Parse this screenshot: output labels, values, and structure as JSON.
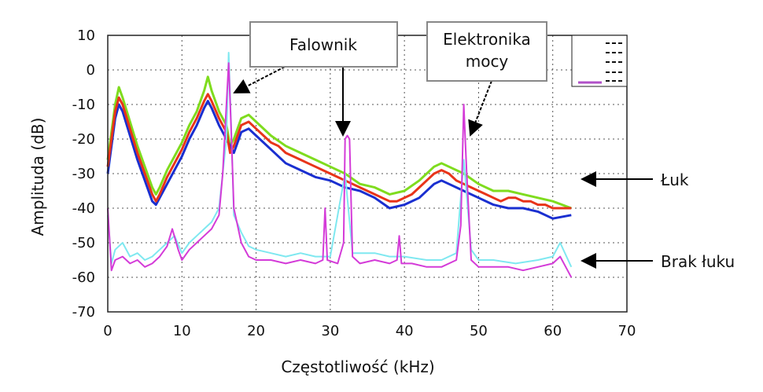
{
  "chart_data": {
    "type": "line",
    "title": "",
    "xlabel": "Częstotliwość (kHz)",
    "ylabel": "Amplituda (dB)",
    "xlim": [
      0,
      70
    ],
    "ylim": [
      -70,
      10
    ],
    "xticks": [
      0,
      10,
      20,
      30,
      40,
      50,
      60,
      70
    ],
    "yticks": [
      10,
      0,
      -10,
      -20,
      -30,
      -40,
      -50,
      -60,
      -70
    ],
    "grid": true,
    "legend_placement": "top-right",
    "annotations": [
      {
        "text": "Falownik",
        "target_x": 16.5,
        "target_y": -6
      },
      {
        "text": "Falownik",
        "target_x": 32,
        "target_y": -19
      },
      {
        "text": "Elektronika mocy",
        "target_x": 48.5,
        "target_y": -19
      },
      {
        "text": "Łuk",
        "target_x": 64,
        "target_y": -31
      },
      {
        "text": "Brak łuku",
        "target_x": 64,
        "target_y": -55
      }
    ],
    "series": [
      {
        "color": "#7fdc1e",
        "points": [
          [
            0,
            -26
          ],
          [
            1,
            -10
          ],
          [
            1.5,
            -5
          ],
          [
            2,
            -8
          ],
          [
            3,
            -15
          ],
          [
            4,
            -22
          ],
          [
            5,
            -28
          ],
          [
            6,
            -34
          ],
          [
            6.5,
            -36
          ],
          [
            7,
            -34
          ],
          [
            8,
            -29
          ],
          [
            9,
            -25
          ],
          [
            10,
            -21
          ],
          [
            11,
            -16
          ],
          [
            12,
            -12
          ],
          [
            13,
            -6
          ],
          [
            13.5,
            -2
          ],
          [
            14,
            -6
          ],
          [
            15,
            -12
          ],
          [
            16,
            -16
          ],
          [
            16.5,
            -22
          ],
          [
            17,
            -20
          ],
          [
            18,
            -14
          ],
          [
            19,
            -13
          ],
          [
            20,
            -15
          ],
          [
            22,
            -19
          ],
          [
            24,
            -22
          ],
          [
            26,
            -24
          ],
          [
            28,
            -26
          ],
          [
            30,
            -28
          ],
          [
            32,
            -30
          ],
          [
            34,
            -33
          ],
          [
            36,
            -34
          ],
          [
            38,
            -36
          ],
          [
            40,
            -35
          ],
          [
            42,
            -32
          ],
          [
            44,
            -28
          ],
          [
            45,
            -27
          ],
          [
            46,
            -28
          ],
          [
            48,
            -30
          ],
          [
            50,
            -33
          ],
          [
            52,
            -35
          ],
          [
            54,
            -35
          ],
          [
            56,
            -36
          ],
          [
            58,
            -37
          ],
          [
            60,
            -38
          ],
          [
            62.5,
            -40
          ]
        ]
      },
      {
        "color": "#1a2fd0",
        "points": [
          [
            0,
            -30
          ],
          [
            1,
            -14
          ],
          [
            1.5,
            -10
          ],
          [
            2,
            -12
          ],
          [
            3,
            -19
          ],
          [
            4,
            -26
          ],
          [
            5,
            -32
          ],
          [
            6,
            -38
          ],
          [
            6.5,
            -39
          ],
          [
            7,
            -37
          ],
          [
            8,
            -33
          ],
          [
            9,
            -29
          ],
          [
            10,
            -25
          ],
          [
            11,
            -20
          ],
          [
            12,
            -16
          ],
          [
            13,
            -11
          ],
          [
            13.5,
            -9
          ],
          [
            14,
            -11
          ],
          [
            15,
            -16
          ],
          [
            16,
            -20
          ],
          [
            17,
            -24
          ],
          [
            18,
            -18
          ],
          [
            19,
            -17
          ],
          [
            20,
            -19
          ],
          [
            22,
            -23
          ],
          [
            24,
            -27
          ],
          [
            26,
            -29
          ],
          [
            28,
            -31
          ],
          [
            30,
            -32
          ],
          [
            32,
            -34
          ],
          [
            34,
            -35
          ],
          [
            36,
            -37
          ],
          [
            38,
            -40
          ],
          [
            40,
            -39
          ],
          [
            42,
            -37
          ],
          [
            44,
            -33
          ],
          [
            45,
            -32
          ],
          [
            46,
            -33
          ],
          [
            48,
            -35
          ],
          [
            50,
            -37
          ],
          [
            52,
            -39
          ],
          [
            54,
            -40
          ],
          [
            56,
            -40
          ],
          [
            58,
            -41
          ],
          [
            60,
            -43
          ],
          [
            62.5,
            -42
          ]
        ]
      },
      {
        "color": "#e8341a",
        "points": [
          [
            0,
            -28
          ],
          [
            1,
            -12
          ],
          [
            1.5,
            -8
          ],
          [
            2,
            -10
          ],
          [
            3,
            -17
          ],
          [
            4,
            -24
          ],
          [
            5,
            -30
          ],
          [
            6,
            -36
          ],
          [
            6.5,
            -38
          ],
          [
            7,
            -36
          ],
          [
            8,
            -31
          ],
          [
            9,
            -27
          ],
          [
            10,
            -23
          ],
          [
            11,
            -18
          ],
          [
            12,
            -14
          ],
          [
            13,
            -9
          ],
          [
            13.5,
            -7
          ],
          [
            14,
            -9
          ],
          [
            15,
            -14
          ],
          [
            16,
            -18
          ],
          [
            16.5,
            -24
          ],
          [
            17,
            -22
          ],
          [
            18,
            -16
          ],
          [
            19,
            -15
          ],
          [
            20,
            -17
          ],
          [
            21,
            -19
          ],
          [
            22,
            -21
          ],
          [
            23,
            -22
          ],
          [
            24,
            -24
          ],
          [
            25,
            -25
          ],
          [
            26,
            -26
          ],
          [
            27,
            -27
          ],
          [
            28,
            -28
          ],
          [
            29,
            -29
          ],
          [
            30,
            -30
          ],
          [
            31,
            -31
          ],
          [
            32,
            -32
          ],
          [
            33,
            -33
          ],
          [
            34,
            -34
          ],
          [
            35,
            -35
          ],
          [
            36,
            -36
          ],
          [
            37,
            -37
          ],
          [
            38,
            -38
          ],
          [
            39,
            -38
          ],
          [
            40,
            -37
          ],
          [
            41,
            -36
          ],
          [
            42,
            -34
          ],
          [
            43,
            -32
          ],
          [
            44,
            -30
          ],
          [
            45,
            -29
          ],
          [
            46,
            -30
          ],
          [
            47,
            -32
          ],
          [
            48,
            -33
          ],
          [
            49,
            -34
          ],
          [
            50,
            -35
          ],
          [
            51,
            -36
          ],
          [
            52,
            -37
          ],
          [
            53,
            -38
          ],
          [
            54,
            -37
          ],
          [
            55,
            -37
          ],
          [
            56,
            -38
          ],
          [
            57,
            -38
          ],
          [
            58,
            -39
          ],
          [
            59,
            -39
          ],
          [
            60,
            -40
          ],
          [
            61,
            -40
          ],
          [
            62.5,
            -40
          ]
        ]
      },
      {
        "color": "#7fe8f0",
        "points": [
          [
            0,
            -42
          ],
          [
            0.5,
            -56
          ],
          [
            1,
            -52
          ],
          [
            2,
            -50
          ],
          [
            3,
            -54
          ],
          [
            4,
            -53
          ],
          [
            5,
            -55
          ],
          [
            6,
            -54
          ],
          [
            7,
            -52
          ],
          [
            8,
            -50
          ],
          [
            9,
            -48
          ],
          [
            10,
            -53
          ],
          [
            11,
            -50
          ],
          [
            12,
            -48
          ],
          [
            13,
            -46
          ],
          [
            14,
            -44
          ],
          [
            15,
            -40
          ],
          [
            16,
            -20
          ],
          [
            16.3,
            5
          ],
          [
            16.7,
            -20
          ],
          [
            17,
            -42
          ],
          [
            18,
            -47
          ],
          [
            19,
            -51
          ],
          [
            20,
            -52
          ],
          [
            22,
            -53
          ],
          [
            24,
            -54
          ],
          [
            26,
            -53
          ],
          [
            28,
            -54
          ],
          [
            30,
            -54
          ],
          [
            32,
            -30
          ],
          [
            33,
            -53
          ],
          [
            36,
            -53
          ],
          [
            38,
            -54
          ],
          [
            40,
            -54
          ],
          [
            43,
            -55
          ],
          [
            45,
            -55
          ],
          [
            47,
            -53
          ],
          [
            48,
            -26
          ],
          [
            49,
            -52
          ],
          [
            50,
            -55
          ],
          [
            52,
            -55
          ],
          [
            55,
            -56
          ],
          [
            58,
            -55
          ],
          [
            60,
            -54
          ],
          [
            61,
            -50
          ],
          [
            62.5,
            -57
          ]
        ]
      },
      {
        "color": "#d43bd8",
        "points": [
          [
            0,
            -40
          ],
          [
            0.5,
            -58
          ],
          [
            1,
            -55
          ],
          [
            2,
            -54
          ],
          [
            3,
            -56
          ],
          [
            4,
            -55
          ],
          [
            5,
            -57
          ],
          [
            6,
            -56
          ],
          [
            7,
            -54
          ],
          [
            8,
            -51
          ],
          [
            8.7,
            -46
          ],
          [
            9.5,
            -52
          ],
          [
            10,
            -55
          ],
          [
            11,
            -52
          ],
          [
            12,
            -50
          ],
          [
            13,
            -48
          ],
          [
            14,
            -46
          ],
          [
            15,
            -42
          ],
          [
            15.5,
            -30
          ],
          [
            16,
            -10
          ],
          [
            16.3,
            2
          ],
          [
            16.6,
            -15
          ],
          [
            17,
            -40
          ],
          [
            18,
            -50
          ],
          [
            19,
            -54
          ],
          [
            20,
            -55
          ],
          [
            22,
            -55
          ],
          [
            24,
            -56
          ],
          [
            26,
            -55
          ],
          [
            28,
            -56
          ],
          [
            29,
            -55
          ],
          [
            29.3,
            -40
          ],
          [
            29.6,
            -55
          ],
          [
            31,
            -56
          ],
          [
            31.8,
            -50
          ],
          [
            32,
            -20
          ],
          [
            32.3,
            -19
          ],
          [
            32.6,
            -20
          ],
          [
            33,
            -54
          ],
          [
            34,
            -56
          ],
          [
            36,
            -55
          ],
          [
            38,
            -56
          ],
          [
            39,
            -55
          ],
          [
            39.3,
            -48
          ],
          [
            39.6,
            -56
          ],
          [
            41,
            -56
          ],
          [
            43,
            -57
          ],
          [
            45,
            -57
          ],
          [
            47,
            -55
          ],
          [
            47.6,
            -45
          ],
          [
            48,
            -10
          ],
          [
            48.4,
            -30
          ],
          [
            49,
            -55
          ],
          [
            50,
            -57
          ],
          [
            52,
            -57
          ],
          [
            54,
            -57
          ],
          [
            56,
            -58
          ],
          [
            58,
            -57
          ],
          [
            60,
            -56
          ],
          [
            61,
            -54
          ],
          [
            62,
            -58
          ],
          [
            62.5,
            -60
          ]
        ]
      }
    ]
  }
}
